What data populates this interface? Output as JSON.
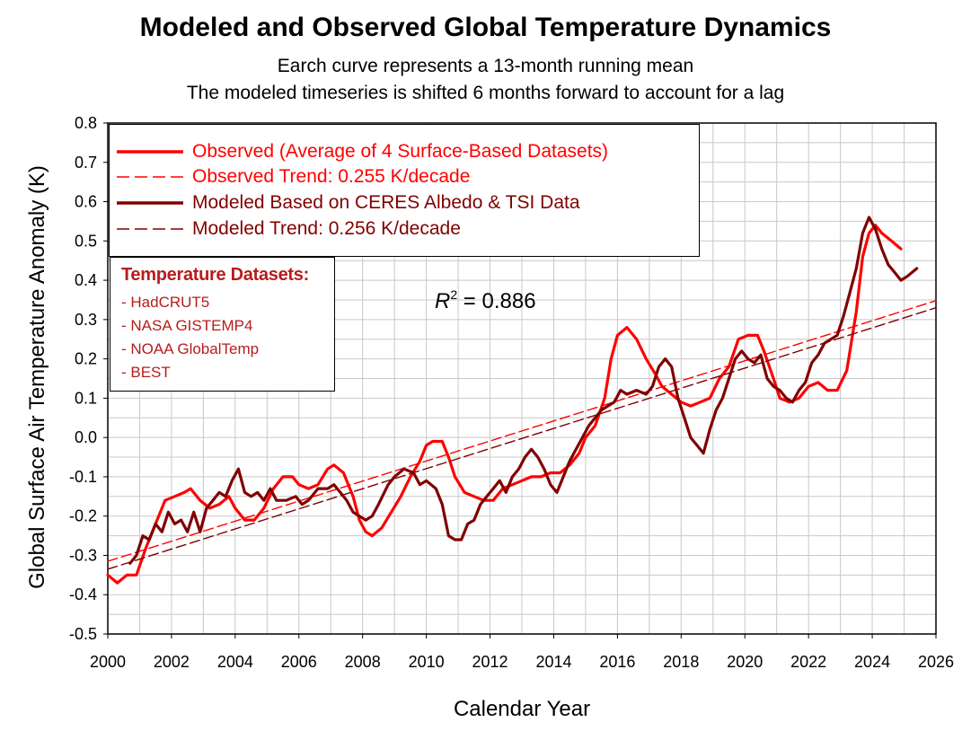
{
  "chart_data": {
    "type": "line",
    "title": "Modeled and Observed Global Temperature Dynamics",
    "subtitle_lines": [
      "Earch curve represents a 13-month running mean",
      "The modeled timeseries is shifted 6 months forward to account for a lag"
    ],
    "xlabel": "Calendar Year",
    "ylabel": "Global Surface Air Temperature Anomaly (K)",
    "xlim": [
      2000,
      2026
    ],
    "ylim": [
      -0.5,
      0.8
    ],
    "xticks": [
      "2000",
      "2002",
      "2004",
      "2006",
      "2008",
      "2010",
      "2012",
      "2014",
      "2016",
      "2018",
      "2020",
      "2022",
      "2024",
      "2026"
    ],
    "yticks": [
      "0.8",
      "0.7",
      "0.6",
      "0.5",
      "0.4",
      "0.3",
      "0.2",
      "0.1",
      "0.0",
      "-0.1",
      "-0.2",
      "-0.3",
      "-0.4",
      "-0.5"
    ],
    "grid": true,
    "legend_position": "top-left",
    "annotation": {
      "r_symbol": "R",
      "exponent": "2",
      "text": " = 0.886"
    },
    "series": [
      {
        "name": "Observed (Average of 4 Surface-Based Datasets)",
        "color": "#ff0000",
        "style": "solid",
        "points": [
          [
            2000.0,
            -0.35
          ],
          [
            2000.3,
            -0.37
          ],
          [
            2000.6,
            -0.35
          ],
          [
            2000.9,
            -0.35
          ],
          [
            2001.2,
            -0.28
          ],
          [
            2001.5,
            -0.22
          ],
          [
            2001.8,
            -0.16
          ],
          [
            2002.1,
            -0.15
          ],
          [
            2002.4,
            -0.14
          ],
          [
            2002.6,
            -0.13
          ],
          [
            2002.9,
            -0.16
          ],
          [
            2003.2,
            -0.18
          ],
          [
            2003.5,
            -0.17
          ],
          [
            2003.8,
            -0.15
          ],
          [
            2004.0,
            -0.18
          ],
          [
            2004.3,
            -0.21
          ],
          [
            2004.6,
            -0.21
          ],
          [
            2004.9,
            -0.18
          ],
          [
            2005.2,
            -0.13
          ],
          [
            2005.5,
            -0.1
          ],
          [
            2005.8,
            -0.1
          ],
          [
            2006.0,
            -0.12
          ],
          [
            2006.3,
            -0.13
          ],
          [
            2006.6,
            -0.12
          ],
          [
            2006.9,
            -0.08
          ],
          [
            2007.1,
            -0.07
          ],
          [
            2007.4,
            -0.09
          ],
          [
            2007.7,
            -0.15
          ],
          [
            2007.9,
            -0.21
          ],
          [
            2008.1,
            -0.24
          ],
          [
            2008.3,
            -0.25
          ],
          [
            2008.6,
            -0.23
          ],
          [
            2008.9,
            -0.19
          ],
          [
            2009.2,
            -0.15
          ],
          [
            2009.5,
            -0.1
          ],
          [
            2009.8,
            -0.06
          ],
          [
            2010.0,
            -0.02
          ],
          [
            2010.2,
            -0.01
          ],
          [
            2010.5,
            -0.01
          ],
          [
            2010.7,
            -0.05
          ],
          [
            2010.9,
            -0.1
          ],
          [
            2011.2,
            -0.14
          ],
          [
            2011.5,
            -0.15
          ],
          [
            2011.8,
            -0.16
          ],
          [
            2012.1,
            -0.16
          ],
          [
            2012.4,
            -0.13
          ],
          [
            2012.7,
            -0.12
          ],
          [
            2013.0,
            -0.11
          ],
          [
            2013.3,
            -0.1
          ],
          [
            2013.6,
            -0.1
          ],
          [
            2013.9,
            -0.09
          ],
          [
            2014.2,
            -0.09
          ],
          [
            2014.5,
            -0.07
          ],
          [
            2014.8,
            -0.04
          ],
          [
            2015.0,
            0.0
          ],
          [
            2015.3,
            0.03
          ],
          [
            2015.6,
            0.1
          ],
          [
            2015.8,
            0.2
          ],
          [
            2016.0,
            0.26
          ],
          [
            2016.3,
            0.28
          ],
          [
            2016.6,
            0.25
          ],
          [
            2016.9,
            0.2
          ],
          [
            2017.2,
            0.16
          ],
          [
            2017.4,
            0.13
          ],
          [
            2017.7,
            0.11
          ],
          [
            2018.0,
            0.09
          ],
          [
            2018.3,
            0.08
          ],
          [
            2018.6,
            0.09
          ],
          [
            2018.9,
            0.1
          ],
          [
            2019.2,
            0.15
          ],
          [
            2019.5,
            0.18
          ],
          [
            2019.8,
            0.25
          ],
          [
            2020.1,
            0.26
          ],
          [
            2020.4,
            0.26
          ],
          [
            2020.6,
            0.22
          ],
          [
            2020.9,
            0.15
          ],
          [
            2021.1,
            0.1
          ],
          [
            2021.4,
            0.09
          ],
          [
            2021.7,
            0.1
          ],
          [
            2022.0,
            0.13
          ],
          [
            2022.3,
            0.14
          ],
          [
            2022.6,
            0.12
          ],
          [
            2022.9,
            0.12
          ],
          [
            2023.2,
            0.17
          ],
          [
            2023.5,
            0.32
          ],
          [
            2023.7,
            0.46
          ],
          [
            2023.9,
            0.52
          ],
          [
            2024.1,
            0.54
          ],
          [
            2024.3,
            0.52
          ],
          [
            2024.6,
            0.5
          ],
          [
            2024.9,
            0.48
          ]
        ]
      },
      {
        "name": "Observed Trend: 0.255 K/decade",
        "color": "#ff0000",
        "style": "dashed",
        "points": [
          [
            2000.0,
            -0.315
          ],
          [
            2026.0,
            0.348
          ]
        ]
      },
      {
        "name": "Modeled Based on CERES Albedo & TSI Data",
        "color": "#800000",
        "style": "solid",
        "points": [
          [
            2000.7,
            -0.32
          ],
          [
            2000.9,
            -0.3
          ],
          [
            2001.1,
            -0.25
          ],
          [
            2001.3,
            -0.26
          ],
          [
            2001.5,
            -0.22
          ],
          [
            2001.7,
            -0.24
          ],
          [
            2001.9,
            -0.19
          ],
          [
            2002.1,
            -0.22
          ],
          [
            2002.3,
            -0.21
          ],
          [
            2002.5,
            -0.24
          ],
          [
            2002.7,
            -0.19
          ],
          [
            2002.9,
            -0.24
          ],
          [
            2003.1,
            -0.18
          ],
          [
            2003.3,
            -0.16
          ],
          [
            2003.5,
            -0.14
          ],
          [
            2003.7,
            -0.15
          ],
          [
            2003.9,
            -0.11
          ],
          [
            2004.1,
            -0.08
          ],
          [
            2004.3,
            -0.14
          ],
          [
            2004.5,
            -0.15
          ],
          [
            2004.7,
            -0.14
          ],
          [
            2004.9,
            -0.16
          ],
          [
            2005.1,
            -0.13
          ],
          [
            2005.3,
            -0.16
          ],
          [
            2005.6,
            -0.16
          ],
          [
            2005.9,
            -0.15
          ],
          [
            2006.1,
            -0.17
          ],
          [
            2006.3,
            -0.16
          ],
          [
            2006.6,
            -0.13
          ],
          [
            2006.9,
            -0.13
          ],
          [
            2007.1,
            -0.12
          ],
          [
            2007.3,
            -0.14
          ],
          [
            2007.5,
            -0.16
          ],
          [
            2007.7,
            -0.19
          ],
          [
            2007.9,
            -0.2
          ],
          [
            2008.1,
            -0.21
          ],
          [
            2008.3,
            -0.2
          ],
          [
            2008.5,
            -0.17
          ],
          [
            2008.8,
            -0.12
          ],
          [
            2009.0,
            -0.1
          ],
          [
            2009.3,
            -0.08
          ],
          [
            2009.6,
            -0.09
          ],
          [
            2009.8,
            -0.12
          ],
          [
            2010.0,
            -0.11
          ],
          [
            2010.3,
            -0.13
          ],
          [
            2010.5,
            -0.17
          ],
          [
            2010.7,
            -0.25
          ],
          [
            2010.9,
            -0.26
          ],
          [
            2011.1,
            -0.26
          ],
          [
            2011.3,
            -0.22
          ],
          [
            2011.5,
            -0.21
          ],
          [
            2011.7,
            -0.17
          ],
          [
            2011.9,
            -0.15
          ],
          [
            2012.1,
            -0.13
          ],
          [
            2012.3,
            -0.11
          ],
          [
            2012.5,
            -0.14
          ],
          [
            2012.7,
            -0.1
          ],
          [
            2012.9,
            -0.08
          ],
          [
            2013.1,
            -0.05
          ],
          [
            2013.3,
            -0.03
          ],
          [
            2013.5,
            -0.05
          ],
          [
            2013.7,
            -0.08
          ],
          [
            2013.9,
            -0.12
          ],
          [
            2014.1,
            -0.14
          ],
          [
            2014.3,
            -0.1
          ],
          [
            2014.5,
            -0.06
          ],
          [
            2014.7,
            -0.03
          ],
          [
            2014.9,
            0.0
          ],
          [
            2015.1,
            0.03
          ],
          [
            2015.3,
            0.05
          ],
          [
            2015.5,
            0.07
          ],
          [
            2015.7,
            0.08
          ],
          [
            2015.9,
            0.09
          ],
          [
            2016.1,
            0.12
          ],
          [
            2016.3,
            0.11
          ],
          [
            2016.6,
            0.12
          ],
          [
            2016.9,
            0.11
          ],
          [
            2017.1,
            0.13
          ],
          [
            2017.3,
            0.18
          ],
          [
            2017.5,
            0.2
          ],
          [
            2017.7,
            0.18
          ],
          [
            2017.9,
            0.1
          ],
          [
            2018.1,
            0.05
          ],
          [
            2018.3,
            0.0
          ],
          [
            2018.5,
            -0.02
          ],
          [
            2018.7,
            -0.04
          ],
          [
            2018.9,
            0.02
          ],
          [
            2019.1,
            0.07
          ],
          [
            2019.3,
            0.1
          ],
          [
            2019.5,
            0.15
          ],
          [
            2019.7,
            0.2
          ],
          [
            2019.9,
            0.22
          ],
          [
            2020.1,
            0.2
          ],
          [
            2020.3,
            0.19
          ],
          [
            2020.5,
            0.21
          ],
          [
            2020.7,
            0.15
          ],
          [
            2020.9,
            0.13
          ],
          [
            2021.1,
            0.12
          ],
          [
            2021.3,
            0.1
          ],
          [
            2021.5,
            0.09
          ],
          [
            2021.7,
            0.12
          ],
          [
            2021.9,
            0.14
          ],
          [
            2022.1,
            0.19
          ],
          [
            2022.3,
            0.21
          ],
          [
            2022.5,
            0.24
          ],
          [
            2022.7,
            0.25
          ],
          [
            2022.9,
            0.26
          ],
          [
            2023.1,
            0.31
          ],
          [
            2023.3,
            0.37
          ],
          [
            2023.5,
            0.43
          ],
          [
            2023.7,
            0.52
          ],
          [
            2023.9,
            0.56
          ],
          [
            2024.1,
            0.53
          ],
          [
            2024.3,
            0.48
          ],
          [
            2024.5,
            0.44
          ],
          [
            2024.7,
            0.42
          ],
          [
            2024.9,
            0.4
          ],
          [
            2025.1,
            0.41
          ],
          [
            2025.4,
            0.43
          ]
        ]
      },
      {
        "name": "Modeled Trend: 0.256 K/decade",
        "color": "#800000",
        "style": "dashed",
        "points": [
          [
            2000.0,
            -0.335
          ],
          [
            2026.0,
            0.33
          ]
        ]
      }
    ]
  },
  "datasets_box": {
    "title": "Temperature Datasets:",
    "items": [
      "- HadCRUT5",
      "- NASA GISTEMP4",
      "- NOAA GlobalTemp",
      "- BEST"
    ]
  }
}
